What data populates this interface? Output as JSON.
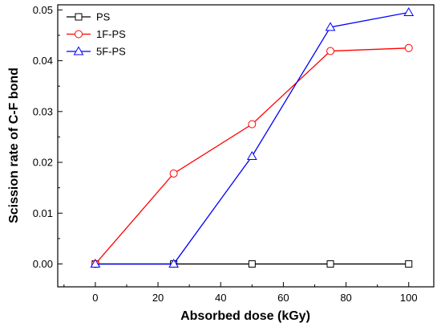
{
  "chart_data": {
    "type": "line",
    "xlabel": "Absorbed dose (kGy)",
    "ylabel": "Scission rate of C-F bond",
    "xlim": [
      -12,
      108
    ],
    "ylim": [
      -0.0045,
      0.051
    ],
    "xticks": [
      0,
      20,
      40,
      60,
      80,
      100
    ],
    "yticks": [
      0.0,
      0.01,
      0.02,
      0.03,
      0.04,
      0.05
    ],
    "xtick_labels": [
      "0",
      "20",
      "40",
      "60",
      "80",
      "100"
    ],
    "ytick_labels": [
      "0.00",
      "0.01",
      "0.02",
      "0.03",
      "0.04",
      "0.05"
    ],
    "grid": false,
    "legend_position": "top-left",
    "x": [
      0,
      25,
      50,
      75,
      100
    ],
    "series": [
      {
        "name": "PS",
        "values": [
          0.0,
          0.0,
          0.0,
          0.0,
          0.0
        ],
        "color": "#000000",
        "marker": "square"
      },
      {
        "name": "1F-PS",
        "values": [
          0.0,
          0.0178,
          0.0275,
          0.0419,
          0.0425
        ],
        "color": "#ff0000",
        "marker": "circle"
      },
      {
        "name": "5F-PS",
        "values": [
          0.0,
          0.0,
          0.0212,
          0.0466,
          0.0495
        ],
        "color": "#0000ff",
        "marker": "triangle"
      }
    ]
  }
}
